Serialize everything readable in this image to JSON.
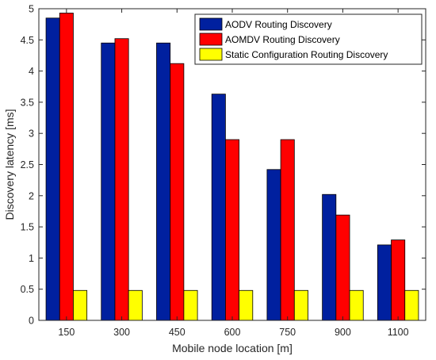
{
  "chart_data": {
    "type": "bar",
    "title": "",
    "xlabel": "Mobile node location [m]",
    "ylabel": "Discovery latency [ms]",
    "categories": [
      "150",
      "300",
      "450",
      "600",
      "750",
      "900",
      "1100"
    ],
    "ylim": [
      0,
      5
    ],
    "yticks": [
      "0",
      "0.5",
      "1",
      "1.5",
      "2",
      "2.5",
      "3",
      "3.5",
      "4",
      "4.5",
      "5"
    ],
    "grid": false,
    "legend_position": "top-right",
    "series": [
      {
        "name": "AODV Routing Discovery",
        "color": "#00209f",
        "values": [
          4.85,
          4.45,
          4.45,
          3.63,
          2.42,
          2.02,
          1.21
        ]
      },
      {
        "name": "AOMDV Routing Discovery",
        "color": "#ff0000",
        "values": [
          4.93,
          4.52,
          4.12,
          2.9,
          2.9,
          1.69,
          1.29
        ]
      },
      {
        "name": "Static Configuration Routing Discovery",
        "color": "#ffff00",
        "values": [
          0.48,
          0.48,
          0.48,
          0.48,
          0.48,
          0.48,
          0.48
        ]
      }
    ]
  }
}
